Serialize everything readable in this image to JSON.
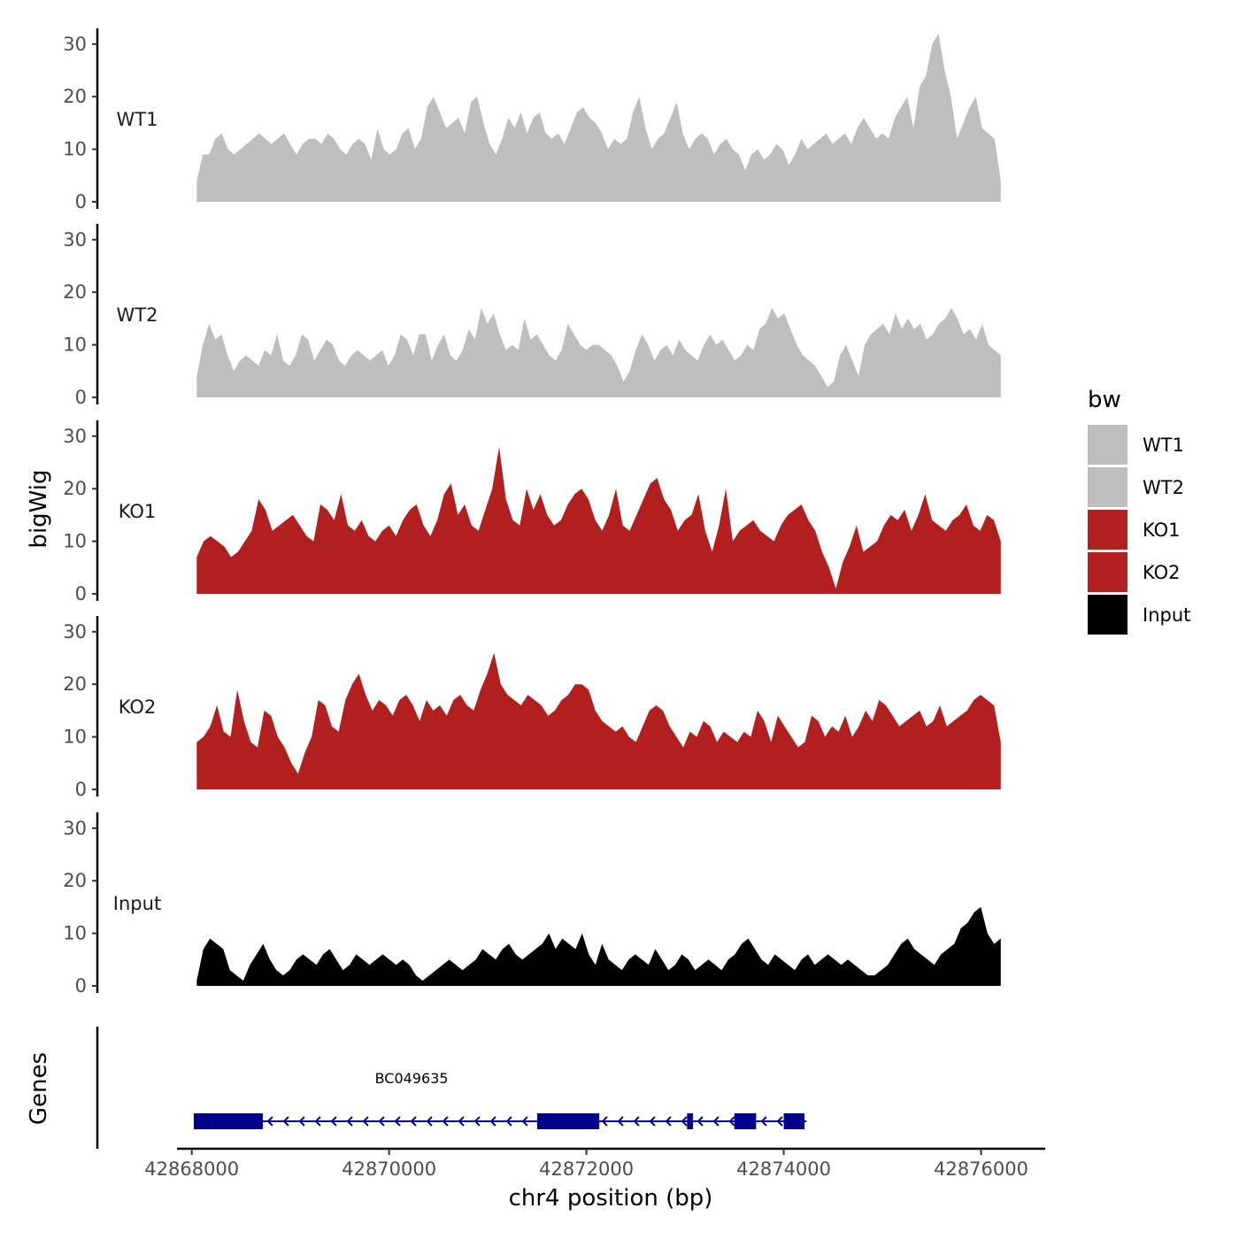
{
  "chart_data": {
    "type": "area",
    "title": "",
    "xlabel": "chr4 position (bp)",
    "ylabel": "bigWig",
    "gene_track_label": "Genes",
    "legend_title": "bw",
    "xlim": [
      42867850,
      42876650
    ],
    "x_ticks": [
      42868000,
      42870000,
      42872000,
      42874000,
      42876000
    ],
    "x_tick_labels": [
      "42868000",
      "42870000",
      "42872000",
      "42874000",
      "42876000"
    ],
    "ylim": [
      0,
      33
    ],
    "y_ticks": [
      0,
      10,
      20,
      30
    ],
    "y_tick_labels": [
      "0",
      "10",
      "20",
      "30"
    ],
    "series": [
      {
        "name": "WT1",
        "color": "#bebebe",
        "x_start": 42868050,
        "x_end": 42876200,
        "values": [
          4,
          9,
          9,
          12,
          13,
          10,
          9,
          10,
          11,
          12,
          13,
          12,
          11,
          12,
          13,
          11,
          9,
          11,
          12,
          12,
          11,
          13,
          12,
          10,
          9,
          11,
          12,
          11,
          8,
          14,
          10,
          9,
          10,
          13,
          14,
          10,
          12,
          18,
          20,
          17,
          14,
          15,
          16,
          13,
          19,
          20,
          15,
          11,
          9,
          12,
          16,
          14,
          17,
          13,
          16,
          17,
          13,
          12,
          13,
          11,
          14,
          17,
          18,
          16,
          15,
          13,
          10,
          12,
          11,
          12,
          17,
          20,
          14,
          10,
          12,
          13,
          16,
          19,
          13,
          10,
          12,
          13,
          12,
          9,
          11,
          12,
          10,
          9,
          6,
          9,
          10,
          8,
          9,
          11,
          10,
          7,
          9,
          12,
          10,
          11,
          12,
          13,
          11,
          12,
          13,
          11,
          14,
          16,
          14,
          12,
          13,
          12,
          16,
          18,
          20,
          14,
          22,
          24,
          30,
          32,
          25,
          20,
          12,
          15,
          18,
          20,
          14,
          13,
          12,
          4
        ]
      },
      {
        "name": "WT2",
        "color": "#bebebe",
        "x_start": 42868050,
        "x_end": 42876200,
        "values": [
          4,
          10,
          14,
          11,
          12,
          8,
          5,
          7,
          8,
          7,
          6,
          9,
          8,
          12,
          7,
          6,
          8,
          12,
          11,
          7,
          9,
          11,
          10,
          7,
          6,
          8,
          9,
          8,
          7,
          8,
          9,
          6,
          8,
          12,
          11,
          8,
          12,
          12,
          7,
          10,
          12,
          8,
          7,
          9,
          13,
          11,
          17,
          14,
          16,
          12,
          9,
          10,
          9,
          15,
          11,
          12,
          10,
          8,
          7,
          9,
          14,
          12,
          10,
          9,
          10,
          10,
          9,
          8,
          6,
          3,
          5,
          9,
          12,
          10,
          7,
          9,
          10,
          8,
          11,
          9,
          8,
          7,
          10,
          12,
          10,
          11,
          9,
          7,
          8,
          10,
          9,
          13,
          14,
          17,
          15,
          16,
          13,
          10,
          8,
          7,
          6,
          4,
          2,
          3,
          8,
          10,
          7,
          4,
          10,
          12,
          13,
          14,
          12,
          16,
          13,
          15,
          13,
          14,
          11,
          12,
          14,
          15,
          17,
          15,
          12,
          13,
          11,
          14,
          10,
          9,
          8
        ]
      },
      {
        "name": "KO1",
        "color": "#b21f1f",
        "x_start": 42868050,
        "x_end": 42876200,
        "values": [
          7,
          10,
          11,
          10,
          9,
          7,
          8,
          10,
          12,
          18,
          16,
          12,
          13,
          14,
          15,
          13,
          11,
          10,
          17,
          16,
          14,
          19,
          13,
          12,
          14,
          11,
          10,
          12,
          13,
          11,
          14,
          16,
          17,
          13,
          11,
          14,
          19,
          21,
          15,
          17,
          13,
          12,
          16,
          20,
          28,
          18,
          14,
          13,
          20,
          16,
          19,
          15,
          13,
          14,
          17,
          19,
          20,
          18,
          14,
          12,
          15,
          20,
          13,
          12,
          15,
          18,
          21,
          22,
          18,
          16,
          12,
          14,
          15,
          19,
          12,
          8,
          13,
          20,
          10,
          12,
          13,
          14,
          12,
          11,
          10,
          13,
          15,
          16,
          17,
          14,
          12,
          8,
          5,
          1,
          6,
          9,
          13,
          8,
          9,
          10,
          13,
          15,
          14,
          16,
          12,
          15,
          19,
          14,
          13,
          12,
          14,
          15,
          17,
          13,
          12,
          15,
          14,
          10
        ]
      },
      {
        "name": "KO2",
        "color": "#b21f1f",
        "x_start": 42868050,
        "x_end": 42876200,
        "values": [
          9,
          10,
          12,
          16,
          11,
          10,
          19,
          13,
          9,
          8,
          15,
          14,
          10,
          8,
          5,
          3,
          7,
          10,
          17,
          16,
          12,
          11,
          17,
          20,
          22,
          18,
          15,
          17,
          16,
          14,
          17,
          18,
          16,
          13,
          17,
          15,
          16,
          14,
          17,
          18,
          16,
          15,
          19,
          22,
          26,
          20,
          18,
          17,
          16,
          18,
          17,
          16,
          14,
          15,
          17,
          18,
          20,
          20,
          19,
          15,
          13,
          12,
          11,
          12,
          10,
          9,
          12,
          15,
          16,
          15,
          12,
          10,
          8,
          11,
          10,
          13,
          12,
          9,
          11,
          10,
          9,
          11,
          10,
          15,
          13,
          9,
          14,
          12,
          10,
          8,
          9,
          14,
          13,
          10,
          12,
          11,
          14,
          10,
          12,
          15,
          13,
          17,
          16,
          14,
          12,
          13,
          14,
          15,
          12,
          13,
          16,
          12,
          13,
          14,
          15,
          17,
          18,
          17,
          16,
          9
        ]
      },
      {
        "name": "Input",
        "color": "#000000",
        "x_start": 42868050,
        "x_end": 42876200,
        "values": [
          1,
          7,
          9,
          8,
          7,
          3,
          2,
          1,
          4,
          6,
          8,
          5,
          3,
          2,
          3,
          5,
          6,
          5,
          4,
          6,
          7,
          5,
          3,
          4,
          6,
          5,
          4,
          5,
          6,
          5,
          4,
          5,
          4,
          2,
          1,
          2,
          3,
          4,
          5,
          4,
          3,
          4,
          5,
          7,
          6,
          5,
          7,
          8,
          6,
          5,
          6,
          7,
          8,
          10,
          7,
          9,
          8,
          7,
          10,
          6,
          4,
          8,
          5,
          4,
          3,
          5,
          6,
          5,
          4,
          7,
          5,
          3,
          4,
          6,
          5,
          3,
          4,
          5,
          4,
          3,
          5,
          6,
          8,
          9,
          7,
          5,
          4,
          6,
          5,
          4,
          3,
          5,
          6,
          4,
          5,
          6,
          5,
          4,
          5,
          4,
          3,
          2,
          2,
          3,
          4,
          6,
          8,
          9,
          7,
          6,
          5,
          4,
          6,
          7,
          8,
          11,
          12,
          14,
          15,
          10,
          8,
          9
        ]
      }
    ],
    "genes": [
      {
        "name": "BC049635",
        "strand": "-",
        "start": 42868020,
        "end": 42874230,
        "exons": [
          [
            42868020,
            42868200
          ],
          [
            42868200,
            42868720
          ],
          [
            42871500,
            42872130
          ],
          [
            42873020,
            42873080
          ],
          [
            42873500,
            42873720
          ],
          [
            42874000,
            42874210
          ]
        ]
      }
    ]
  }
}
